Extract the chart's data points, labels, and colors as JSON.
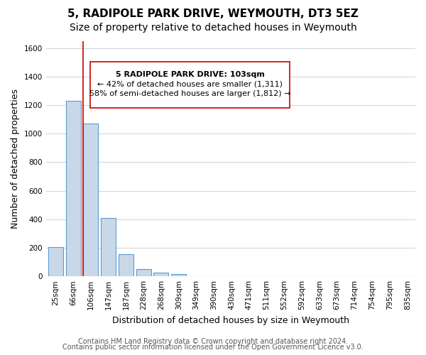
{
  "title": "5, RADIPOLE PARK DRIVE, WEYMOUTH, DT3 5EZ",
  "subtitle": "Size of property relative to detached houses in Weymouth",
  "xlabel": "Distribution of detached houses by size in Weymouth",
  "ylabel": "Number of detached properties",
  "bar_labels": [
    "25sqm",
    "66sqm",
    "106sqm",
    "147sqm",
    "187sqm",
    "228sqm",
    "268sqm",
    "309sqm",
    "349sqm",
    "390sqm",
    "430sqm",
    "471sqm",
    "511sqm",
    "552sqm",
    "592sqm",
    "633sqm",
    "673sqm",
    "714sqm",
    "754sqm",
    "795sqm",
    "835sqm"
  ],
  "bar_values": [
    205,
    1230,
    1070,
    410,
    155,
    52,
    25,
    15,
    0,
    0,
    0,
    0,
    0,
    0,
    0,
    0,
    0,
    0,
    0,
    0,
    0
  ],
  "bar_color": "#c8d8e8",
  "bar_edge_color": "#5b9bd5",
  "property_line_color": "#cc0000",
  "ylim": [
    0,
    1650
  ],
  "yticks": [
    0,
    200,
    400,
    600,
    800,
    1000,
    1200,
    1400,
    1600
  ],
  "annotation_line1": "5 RADIPOLE PARK DRIVE: 103sqm",
  "annotation_line2": "← 42% of detached houses are smaller (1,311)",
  "annotation_line3": "58% of semi-detached houses are larger (1,812) →",
  "annotation_box_color": "#ffffff",
  "annotation_box_edge_color": "#cc0000",
  "footer_line1": "Contains HM Land Registry data © Crown copyright and database right 2024.",
  "footer_line2": "Contains public sector information licensed under the Open Government Licence v3.0.",
  "background_color": "#ffffff",
  "grid_color": "#d0d8e0",
  "title_fontsize": 11,
  "subtitle_fontsize": 10,
  "axis_label_fontsize": 9,
  "tick_fontsize": 7.5,
  "footer_fontsize": 7
}
